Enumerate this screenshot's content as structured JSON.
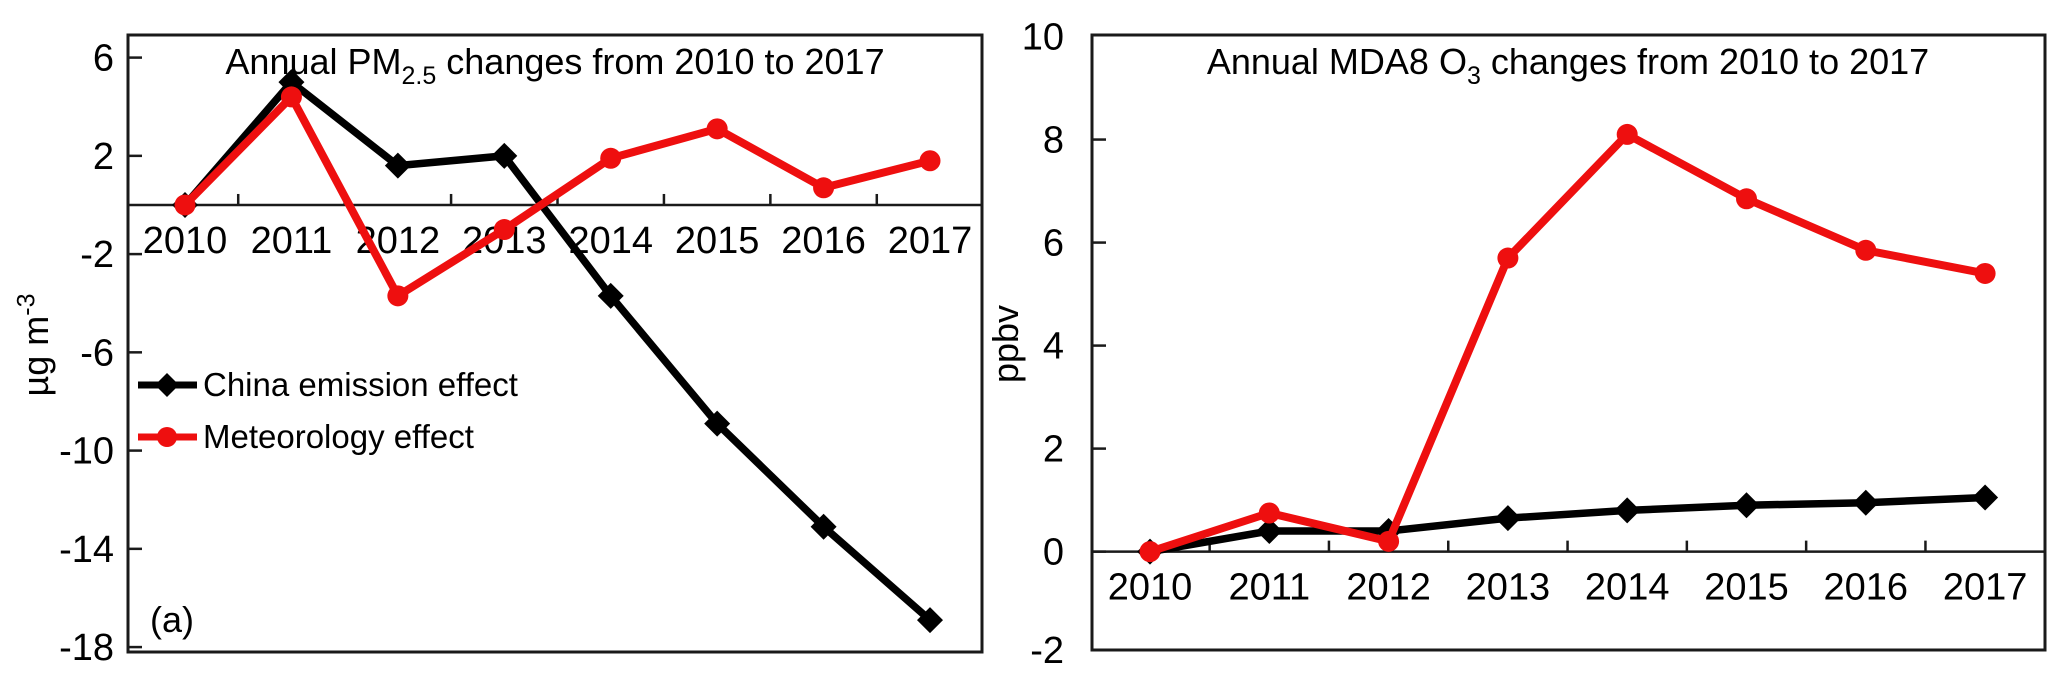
{
  "figure": {
    "description_label": "Annual pollutant changes figure",
    "colors": {
      "emission_series": "#000000",
      "meteorology_series": "#ee0f0f",
      "axis": "#1a1a1a",
      "background": "#ffffff"
    }
  },
  "chart_data": [
    {
      "type": "line",
      "panel_label": "(a)",
      "title_parts": [
        {
          "t": "Annual PM"
        },
        {
          "t": "2.5",
          "sub": true
        },
        {
          "t": " changes from 2010 to 2017"
        }
      ],
      "title_plain": "Annual PM2.5 changes from 2010 to 2017",
      "ylabel_parts": [
        {
          "t": "µg m"
        },
        {
          "t": "-3",
          "sup": true
        }
      ],
      "ylabel_plain": "µg m-3",
      "x_labels": [
        "2010",
        "2011",
        "2012",
        "2013",
        "2014",
        "2015",
        "2016",
        "2017"
      ],
      "series": [
        {
          "name": "China emission effect",
          "color": "#000000",
          "marker": "diamond",
          "values": [
            0,
            5.0,
            1.6,
            2.0,
            -3.7,
            -8.9,
            -13.1,
            -16.9
          ]
        },
        {
          "name": "Meteorology effect",
          "color": "#ee0f0f",
          "marker": "circle",
          "values": [
            0,
            4.4,
            -3.7,
            -1.0,
            1.9,
            3.1,
            0.7,
            1.8
          ]
        }
      ],
      "yticks": [
        6,
        2,
        -2,
        -6,
        -10,
        -14,
        -18
      ],
      "ylim": [
        6.92,
        -18.2
      ],
      "grid": false,
      "legend": true,
      "legend_position": "middle-left"
    },
    {
      "type": "line",
      "panel_label": "",
      "title_parts": [
        {
          "t": "Annual MDA8 O"
        },
        {
          "t": "3",
          "sub": true
        },
        {
          "t": " changes from 2010 to 2017"
        }
      ],
      "title_plain": "Annual MDA8 O3 changes from 2010 to 2017",
      "ylabel_parts": [
        {
          "t": "ppbv"
        }
      ],
      "ylabel_plain": "ppbv",
      "x_labels": [
        "2010",
        "2011",
        "2012",
        "2013",
        "2014",
        "2015",
        "2016",
        "2017"
      ],
      "series": [
        {
          "name": "China emission effect",
          "color": "#000000",
          "marker": "diamond",
          "values": [
            0,
            0.4,
            0.4,
            0.65,
            0.8,
            0.9,
            0.95,
            1.05
          ]
        },
        {
          "name": "Meteorology effect",
          "color": "#ee0f0f",
          "marker": "circle",
          "values": [
            0,
            0.75,
            0.2,
            5.7,
            8.1,
            6.85,
            5.85,
            5.4
          ]
        }
      ],
      "yticks": [
        10,
        8,
        6,
        4,
        2,
        0,
        -2
      ],
      "ylim": [
        10.03,
        -1.91
      ],
      "grid": false,
      "legend": false
    }
  ]
}
